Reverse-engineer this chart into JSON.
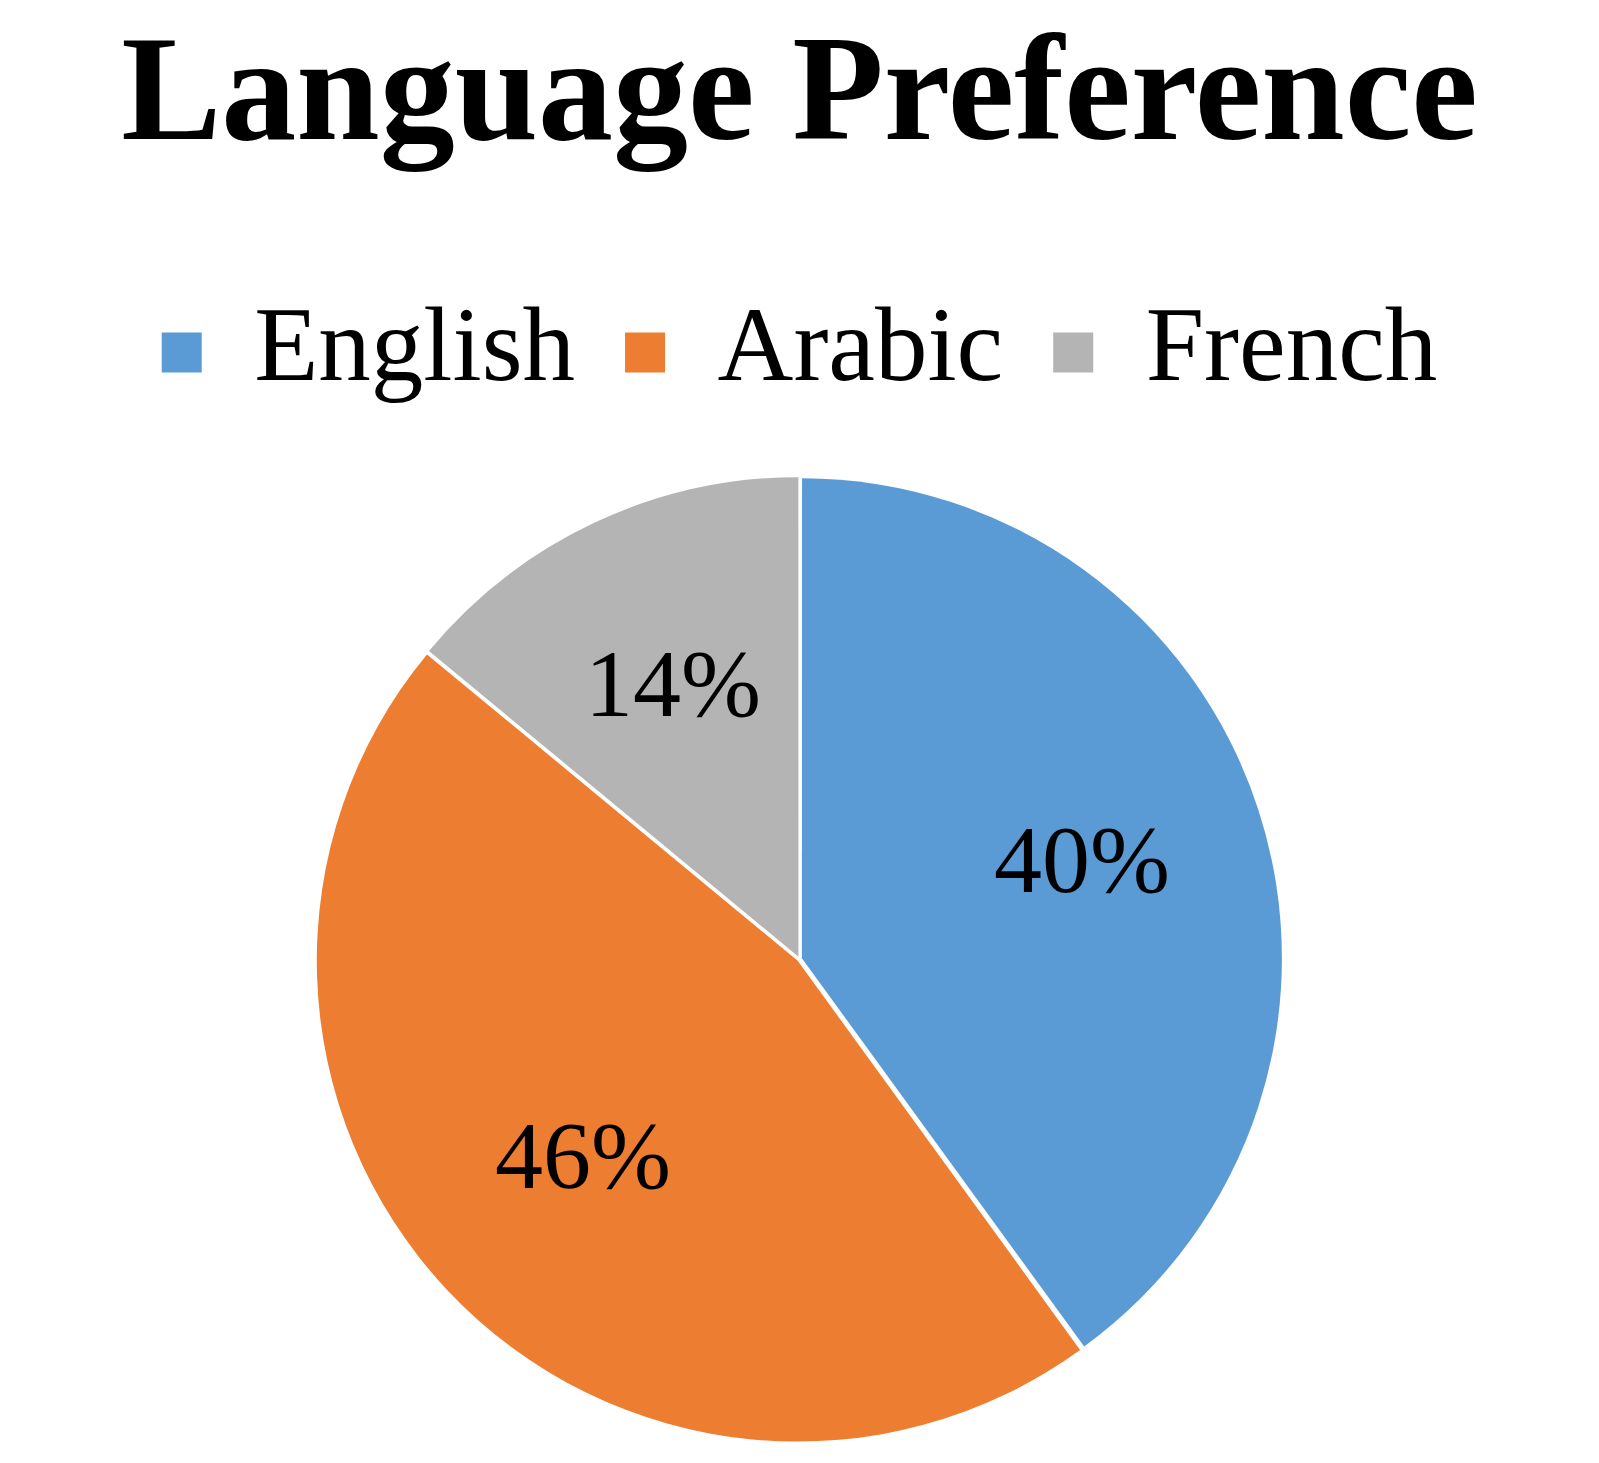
{
  "chart_data": {
    "type": "pie",
    "title": "Language Preference",
    "categories": [
      "English",
      "Arabic",
      "French"
    ],
    "values": [
      40,
      46,
      14
    ],
    "value_labels": [
      "40%",
      "46%",
      "14%"
    ],
    "colors": [
      "#5b9bd5",
      "#ed7d31",
      "#b4b4b4"
    ],
    "legend": "top"
  }
}
